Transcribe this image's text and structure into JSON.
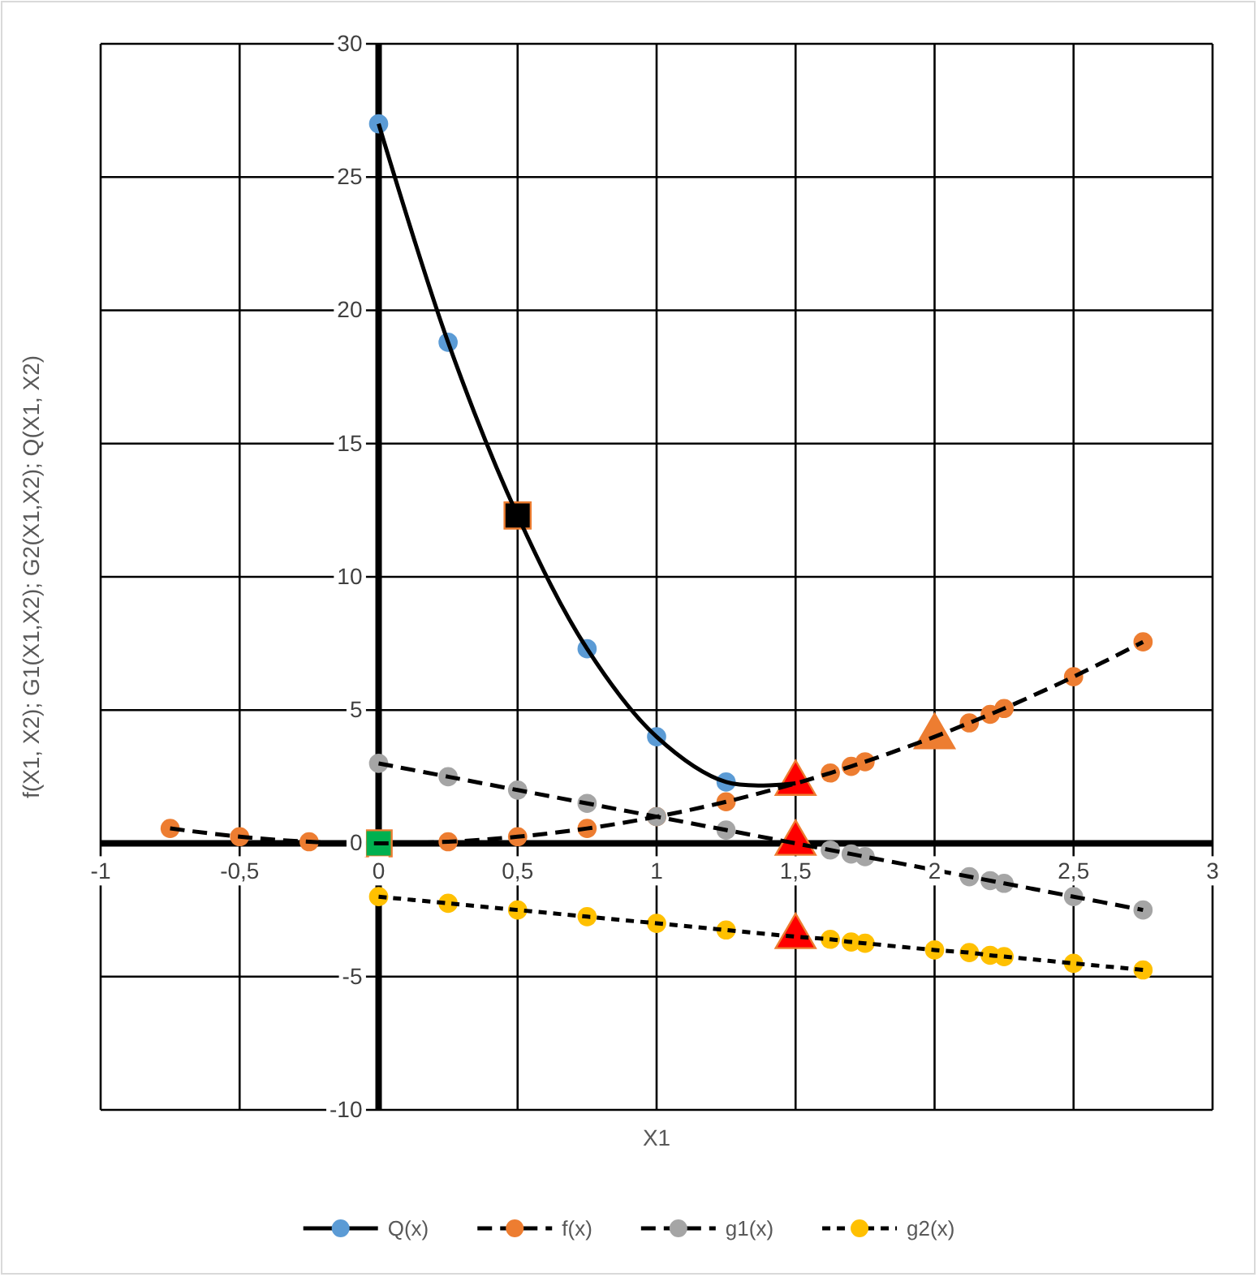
{
  "chart_data": {
    "type": "line",
    "xlabel": "X1",
    "ylabel": "f(X1, X2); G1(X1,X2); G2(X1,X2); Q(X1, X2)",
    "xlim": [
      -1,
      3
    ],
    "ylim": [
      -10,
      30
    ],
    "xticks": [
      -1,
      {
        "value": -0.5,
        "label": "-0,5"
      },
      0,
      {
        "value": 0.5,
        "label": "0,5"
      },
      1,
      {
        "value": 1.5,
        "label": "1,5"
      },
      2,
      {
        "value": 2.5,
        "label": "2,5"
      },
      3
    ],
    "yticks": [
      -10,
      -5,
      0,
      5,
      10,
      15,
      20,
      25,
      30
    ],
    "grid": true,
    "legend": "bottom",
    "marker": "circle",
    "series": [
      {
        "name": "Q(x)",
        "color": "#5b9bd5",
        "line_style": "solid",
        "x": [
          0,
          0.25,
          0.5,
          0.75,
          1,
          1.25,
          1.5
        ],
        "values": [
          27,
          18.8,
          12.3,
          7.3,
          4,
          2.3,
          2.25
        ]
      },
      {
        "name": "f(x)",
        "color": "#ed7d31",
        "line_style": "dashed",
        "x": [
          -0.75,
          -0.5,
          -0.25,
          0,
          0.25,
          0.5,
          0.75,
          1,
          1.25,
          1.5,
          1.625,
          1.7,
          1.75,
          2,
          2.125,
          2.2,
          2.25,
          2.5,
          2.75
        ],
        "values": [
          0.56,
          0.25,
          0.06,
          0,
          0.06,
          0.25,
          0.56,
          1,
          1.56,
          2.25,
          2.64,
          2.89,
          3.06,
          4,
          4.52,
          4.84,
          5.06,
          6.25,
          7.56
        ]
      },
      {
        "name": "g1(x)",
        "color": "#a5a5a5",
        "line_style": "dashed",
        "x": [
          0,
          0.25,
          0.5,
          0.75,
          1,
          1.25,
          1.5,
          1.625,
          1.7,
          1.75,
          2,
          2.125,
          2.2,
          2.25,
          2.5,
          2.75
        ],
        "values": [
          3,
          2.5,
          2,
          1.5,
          1,
          0.5,
          0,
          -0.25,
          -0.4,
          -0.5,
          -1,
          -1.25,
          -1.4,
          -1.5,
          -2,
          -2.5
        ]
      },
      {
        "name": "g2(x)",
        "color": "#ffc000",
        "line_style": "dotted",
        "x": [
          0,
          0.25,
          0.5,
          0.75,
          1,
          1.25,
          1.5,
          1.625,
          1.7,
          1.75,
          2,
          2.125,
          2.2,
          2.25,
          2.5,
          2.75
        ],
        "values": [
          -2,
          -2.25,
          -2.5,
          -2.75,
          -3,
          -3.25,
          -3.5,
          -3.6,
          -3.7,
          -3.75,
          -4,
          -4.1,
          -4.2,
          -4.25,
          -4.5,
          -4.75
        ]
      },
      {
        "type": "scatter",
        "color": "#000000",
        "marker": "square",
        "x": [
          0.5
        ],
        "values": [
          12.3
        ]
      },
      {
        "type": "scatter",
        "color": "#ed7d31",
        "marker": "triangle",
        "x": [
          2
        ],
        "values": [
          4
        ]
      },
      {
        "type": "scatter",
        "color": "#ff0000",
        "marker": "triangle",
        "x": [
          1.5,
          1.5,
          1.5
        ],
        "values": [
          2.25,
          0,
          -3.5
        ]
      },
      {
        "type": "scatter",
        "color": "#00b050",
        "marker": "square",
        "x": [
          0
        ],
        "values": [
          0
        ]
      }
    ]
  }
}
